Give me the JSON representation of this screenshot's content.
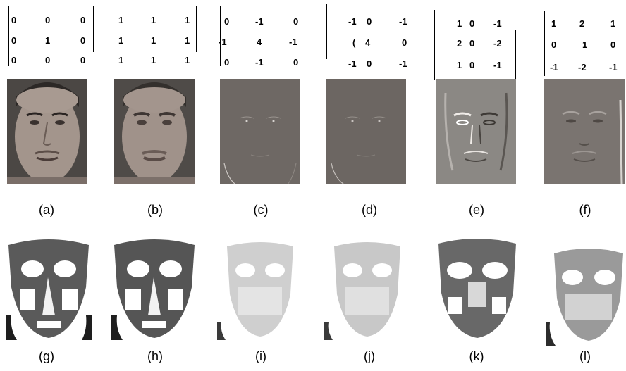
{
  "kernels": [
    {
      "rows": [
        [
          "0",
          "0",
          "0"
        ],
        [
          "0",
          "1",
          "0"
        ],
        [
          "0",
          "0",
          "0"
        ]
      ]
    },
    {
      "rows": [
        [
          "1",
          "1",
          "1"
        ],
        [
          "1",
          "1",
          "1"
        ],
        [
          "1",
          "1",
          "1"
        ]
      ]
    },
    {
      "rows": [
        [
          "0",
          "-1",
          "0"
        ],
        [
          "-1",
          "4",
          "-1"
        ],
        [
          "0",
          "-1",
          "0"
        ]
      ]
    },
    {
      "rows": [
        [
          "-1",
          "0",
          "-1"
        ],
        [
          "(",
          "4",
          "0"
        ],
        [
          "-1",
          "0",
          "-1"
        ]
      ]
    },
    {
      "rows": [
        [
          "1",
          "0",
          "-1"
        ],
        [
          "2",
          "0",
          "-2"
        ],
        [
          "1",
          "0",
          "-1"
        ]
      ]
    },
    {
      "rows": [
        [
          "1",
          "2",
          "1"
        ],
        [
          "0",
          "1",
          "0"
        ],
        [
          "-1",
          "-2",
          "-1"
        ]
      ]
    }
  ],
  "row1_labels": [
    "(a)",
    "(b)",
    "(c)",
    "(d)",
    "(e)",
    "(f)"
  ],
  "row2_labels": [
    "(g)",
    "(h)",
    "(i)",
    "(j)",
    "(k)",
    "(l)"
  ],
  "colors": {
    "photo_bg": "#5a5652",
    "face_skin": "#9b8e86",
    "filtered_bg": "#6e6864",
    "emboss_bg": "#8b8884"
  }
}
